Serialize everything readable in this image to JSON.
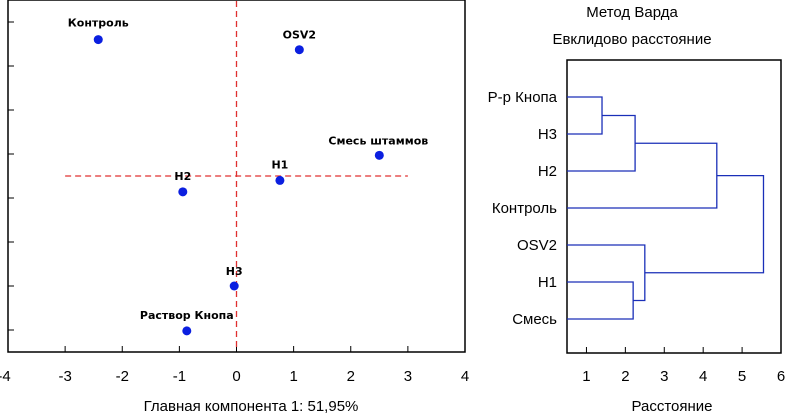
{
  "chart_data": [
    {
      "type": "scatter",
      "xlabel": "Главная компонента 1: 51,95%",
      "xlim": [
        -4,
        4
      ],
      "ylim": [
        -4,
        4
      ],
      "xticks": [
        "-4",
        "-3",
        "-2",
        "-1",
        "0",
        "1",
        "2",
        "3",
        "4"
      ],
      "ref_lines": {
        "x": 0,
        "y": 0,
        "style": "dashed",
        "color": "#e03030"
      },
      "point_color": "#0b1fe0",
      "points": [
        {
          "label": "Контроль",
          "x": -2.42,
          "y": 3.1
        },
        {
          "label": "OSV2",
          "x": 1.1,
          "y": 2.87
        },
        {
          "label": "Смесь штаммов",
          "x": 2.5,
          "y": 0.47
        },
        {
          "label": "H1",
          "x": 0.76,
          "y": -0.1
        },
        {
          "label": "H2",
          "x": -0.94,
          "y": -0.36
        },
        {
          "label": "H3",
          "x": -0.04,
          "y": -2.5
        },
        {
          "label": "Раствор Кнопа",
          "x": -0.87,
          "y": -3.52
        }
      ]
    },
    {
      "type": "dendrogram",
      "title": "Метод Варда",
      "subtitle": "Евклидово расстояние",
      "xlabel": "Расстояние",
      "xlim": [
        0.5,
        6
      ],
      "xticks": [
        "1",
        "2",
        "3",
        "4",
        "5",
        "6"
      ],
      "line_color": "#1a2fb8",
      "leaves": [
        "Р-р Кнопа",
        "H3",
        "H2",
        "Контроль",
        "OSV2",
        "H1",
        "Смесь"
      ],
      "merges": [
        {
          "a": "leaf:0",
          "b": "leaf:1",
          "height": 1.4
        },
        {
          "a": "node:0",
          "b": "leaf:2",
          "height": 2.25
        },
        {
          "a": "node:1",
          "b": "leaf:3",
          "height": 4.35
        },
        {
          "a": "leaf:5",
          "b": "leaf:6",
          "height": 2.2
        },
        {
          "a": "leaf:4",
          "b": "node:3",
          "height": 2.5
        },
        {
          "a": "node:2",
          "b": "node:4",
          "height": 5.55
        }
      ]
    }
  ]
}
